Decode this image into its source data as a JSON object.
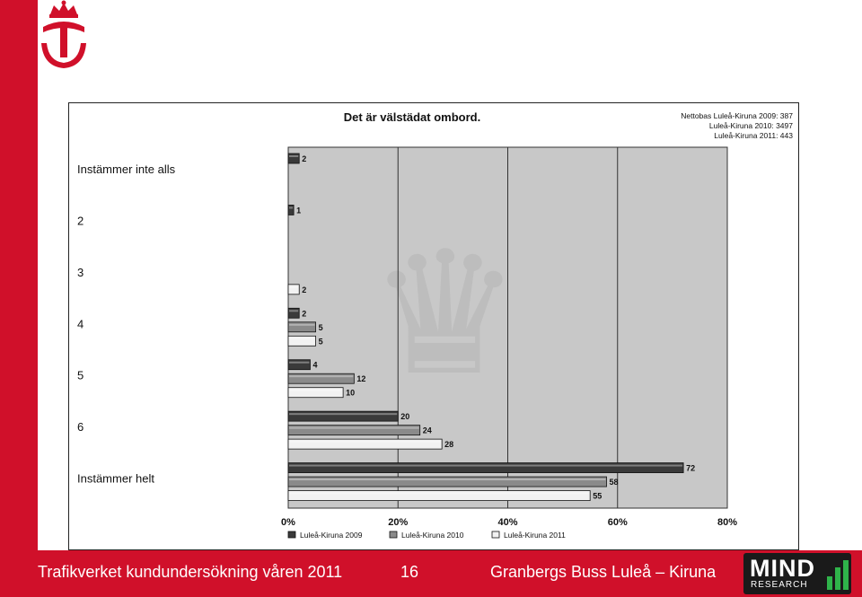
{
  "colors": {
    "accent_red": "#d0102a",
    "chart_bg": "#c8c8c8",
    "series_dark": "#3a3a3a",
    "series_mid": "#8a8a8a",
    "series_light": "#f2f2f2"
  },
  "logo": {
    "icon": "crowned-t-emblem-icon"
  },
  "chart_data": {
    "type": "bar",
    "orientation": "horizontal",
    "title": "Det är välstädat ombord.",
    "note": [
      "Nettobas  Luleå-Kiruna 2009: 387",
      "Luleå-Kiruna 2010: 3497",
      "Luleå-Kiruna 2011: 443"
    ],
    "categories": [
      "Instämmer inte alls",
      "2",
      "3",
      "4",
      "5",
      "6",
      "Instämmer helt"
    ],
    "series": [
      {
        "name": "Luleå-Kiruna 2009",
        "values": [
          2,
          1,
          null,
          2,
          4,
          20,
          72
        ]
      },
      {
        "name": "Luleå-Kiruna 2010",
        "values": [
          null,
          null,
          null,
          5,
          12,
          24,
          58
        ]
      },
      {
        "name": "Luleå-Kiruna 2011",
        "values": [
          null,
          null,
          2,
          5,
          10,
          28,
          55
        ]
      }
    ],
    "xlim": [
      0,
      80
    ],
    "xticks": [
      "0%",
      "20%",
      "40%",
      "60%",
      "80%"
    ],
    "grid": true,
    "legend": "bottom"
  },
  "footer": {
    "left": "Trafikverket kundundersökning våren 2011",
    "page": "16",
    "right": "Granbergs Buss Luleå – Kiruna",
    "brand_main": "MIND",
    "brand_sub": "RESEARCH"
  }
}
